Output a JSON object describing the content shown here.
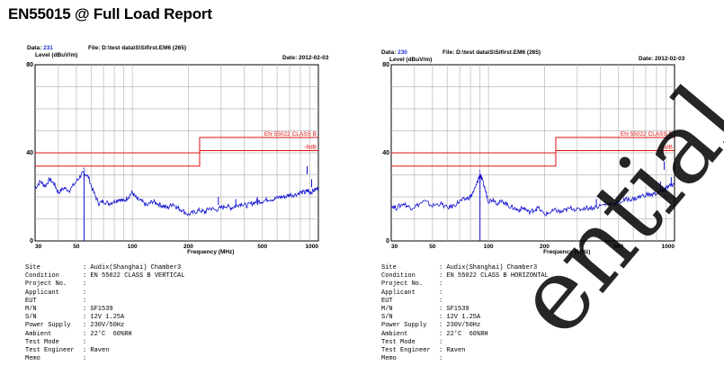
{
  "report_title": "EN55015 @ Full Load Report",
  "watermark_text": "ential",
  "chart_data": [
    {
      "type": "line",
      "data_label": "Data:",
      "data_number": "231",
      "file_label": "File: D:\\test data\\S\\Sifirst.EM6 (265)",
      "date_label": "Date: 2012-02-03",
      "ylabel": "Level (dBuV/m)",
      "xlabel": "Frequency (MHz)",
      "xscale": "log",
      "xlim": [
        30,
        1000
      ],
      "ylim": [
        0,
        80
      ],
      "xticks": [
        30,
        50,
        100,
        200,
        500,
        1000
      ],
      "xtick_labels": [
        "30",
        "50",
        "100",
        "200",
        "500",
        "1000"
      ],
      "yticks": [
        0,
        40,
        80
      ],
      "ytick_labels": [
        "0",
        "40",
        "80"
      ],
      "grid": true,
      "limit_color": "#e01010",
      "trace_color": "#1010d0",
      "limit_label": "EN 55022 CLASS B",
      "margin_label": "-6dB",
      "limit_line": {
        "x": [
          30,
          230,
          230,
          1000
        ],
        "y": [
          40,
          40,
          47,
          47
        ]
      },
      "margin_line": {
        "x": [
          30,
          230,
          230,
          1000
        ],
        "y": [
          34,
          34,
          41,
          41
        ]
      },
      "marker": {
        "freq": 55,
        "level": 31
      },
      "trace": {
        "x": [
          30,
          32,
          34,
          36,
          38,
          40,
          43,
          46,
          50,
          53,
          55,
          58,
          62,
          66,
          70,
          75,
          80,
          85,
          90,
          95,
          100,
          106,
          112,
          120,
          128,
          136,
          145,
          155,
          165,
          175,
          185,
          200,
          215,
          230,
          245,
          260,
          280,
          300,
          320,
          340,
          360,
          385,
          410,
          440,
          470,
          500,
          540,
          580,
          620,
          660,
          700,
          750,
          800,
          850,
          880,
          900,
          950,
          1000
        ],
        "y": [
          24,
          27,
          25,
          28,
          26,
          22,
          24,
          23,
          27,
          30,
          31,
          29,
          22,
          17,
          18,
          17,
          18,
          19,
          18,
          20,
          22,
          19,
          18,
          16,
          18,
          17,
          16,
          15,
          17,
          15,
          14,
          12,
          13,
          14,
          13,
          15,
          14,
          15,
          16,
          15,
          16,
          17,
          16,
          17,
          18,
          18,
          19,
          19,
          20,
          20,
          21,
          21,
          22,
          22,
          23,
          22,
          23,
          24
        ]
      },
      "spikes": [
        {
          "freq": 55,
          "level": 31
        },
        {
          "freq": 290,
          "level": 20
        },
        {
          "freq": 360,
          "level": 19
        },
        {
          "freq": 470,
          "level": 20
        },
        {
          "freq": 870,
          "level": 34
        },
        {
          "freq": 920,
          "level": 28
        }
      ]
    },
    {
      "type": "line",
      "data_label": "Data:",
      "data_number": "230",
      "file_label": "File: D:\\test data\\S\\Sifirst.EM6 (265)",
      "date_label": "Date: 2012-02-03",
      "ylabel": "Level (dBuV/m)",
      "xlabel": "Frequency (MHz)",
      "xscale": "log",
      "xlim": [
        30,
        1000
      ],
      "ylim": [
        0,
        80
      ],
      "xticks": [
        30,
        50,
        100,
        200,
        500,
        1000
      ],
      "xtick_labels": [
        "30",
        "50",
        "100",
        "200",
        "500",
        "1000"
      ],
      "yticks": [
        0,
        40,
        80
      ],
      "ytick_labels": [
        "0",
        "40",
        "80"
      ],
      "grid": true,
      "limit_color": "#e01010",
      "trace_color": "#1010d0",
      "limit_label": "EN 55022 CLASS B",
      "margin_label": "-6dB",
      "limit_line": {
        "x": [
          30,
          230,
          230,
          1000
        ],
        "y": [
          40,
          40,
          47,
          47
        ]
      },
      "margin_line": {
        "x": [
          30,
          230,
          230,
          1000
        ],
        "y": [
          34,
          34,
          41,
          41
        ]
      },
      "marker": {
        "freq": 90,
        "level": 30
      },
      "trace": {
        "x": [
          30,
          32,
          35,
          38,
          41,
          45,
          50,
          55,
          60,
          65,
          70,
          75,
          80,
          85,
          88,
          90,
          93,
          97,
          100,
          106,
          112,
          120,
          128,
          136,
          145,
          155,
          165,
          175,
          185,
          200,
          215,
          230,
          245,
          260,
          280,
          300,
          330,
          360,
          400,
          440,
          480,
          520,
          560,
          600,
          650,
          700,
          760,
          820,
          860,
          880,
          900,
          950,
          1000
        ],
        "y": [
          16,
          15,
          17,
          15,
          16,
          18,
          16,
          17,
          15,
          16,
          18,
          19,
          20,
          24,
          28,
          30,
          27,
          22,
          18,
          19,
          17,
          18,
          16,
          15,
          14,
          15,
          13,
          14,
          15,
          12,
          13,
          14,
          13,
          14,
          15,
          14,
          15,
          15,
          16,
          17,
          17,
          18,
          19,
          19,
          20,
          21,
          21,
          22,
          23,
          23,
          24,
          25,
          26
        ]
      },
      "spikes": [
        {
          "freq": 90,
          "level": 30
        },
        {
          "freq": 380,
          "level": 19
        },
        {
          "freq": 840,
          "level": 27
        },
        {
          "freq": 880,
          "level": 36
        },
        {
          "freq": 960,
          "level": 29
        }
      ]
    }
  ],
  "info_rows": [
    [
      {
        "key": "Site",
        "value": ": Audix(Shanghai) Chamber3"
      },
      {
        "key": "Condition",
        "value": ": EN 55022 CLASS B VERTICAL"
      },
      {
        "key": "Project No.",
        "value": ":"
      },
      {
        "key": "Applicant",
        "value": ":"
      },
      {
        "key": "EUT",
        "value": ":"
      },
      {
        "key": "M/N",
        "value": ": SF1539"
      },
      {
        "key": "S/N",
        "value": ": 12V 1.25A"
      },
      {
        "key": "Power Supply",
        "value": ": 230V/50Hz"
      },
      {
        "key": "Ambient",
        "value": ": 22'C  60%RH"
      },
      {
        "key": "Test Mode",
        "value": ":"
      },
      {
        "key": "Test Engineer",
        "value": ": Raven"
      },
      {
        "key": "Memo",
        "value": ":"
      }
    ],
    [
      {
        "key": "Site",
        "value": ": Audix(Shanghai) Chamber3"
      },
      {
        "key": "Condition",
        "value": ": EN 55022 CLASS B HORIZONTAL"
      },
      {
        "key": "Project No.",
        "value": ":"
      },
      {
        "key": "Applicant",
        "value": ":"
      },
      {
        "key": "EUT",
        "value": ":"
      },
      {
        "key": "M/N",
        "value": ": SF1539"
      },
      {
        "key": "S/N",
        "value": ": 12V 1.25A"
      },
      {
        "key": "Power Supply",
        "value": ": 230V/50Hz"
      },
      {
        "key": "Ambient",
        "value": ": 22'C  60%RH"
      },
      {
        "key": "Test Mode",
        "value": ":"
      },
      {
        "key": "Test Engineer",
        "value": ": Raven"
      },
      {
        "key": "Memo",
        "value": ":"
      }
    ]
  ]
}
